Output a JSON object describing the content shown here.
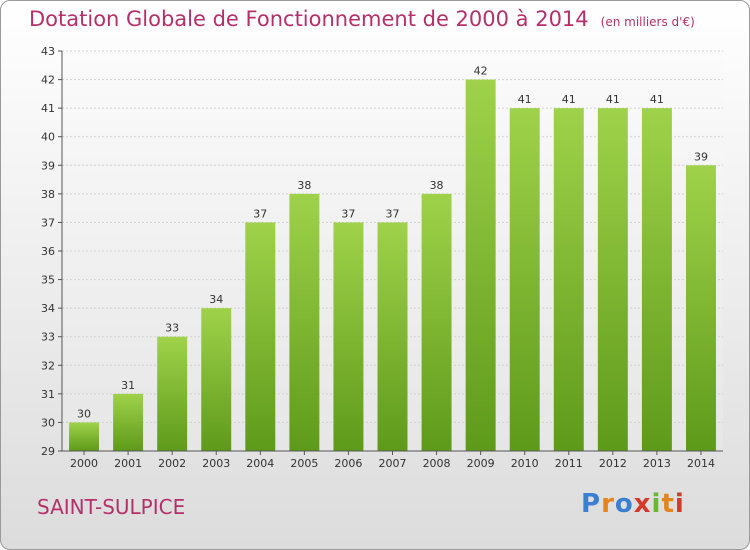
{
  "title": "Dotation Globale de Fonctionnement de 2000 à 2014",
  "subtitle": "(en milliers d'€)",
  "commune": "SAINT-SULPICE",
  "logo": {
    "letters": [
      "P",
      "r",
      "o",
      "x",
      "i",
      "t",
      "i"
    ],
    "colors": [
      "#3b7fd0",
      "#e2851e",
      "#3b7fd0",
      "#d33a2c",
      "#6bb72e",
      "#e2851e",
      "#d33a2c"
    ]
  },
  "chart_data": {
    "type": "bar",
    "categories": [
      "2000",
      "2001",
      "2002",
      "2003",
      "2004",
      "2005",
      "2006",
      "2007",
      "2008",
      "2009",
      "2010",
      "2011",
      "2012",
      "2013",
      "2014"
    ],
    "values": [
      30,
      31,
      33,
      34,
      37,
      38,
      37,
      37,
      38,
      42,
      41,
      41,
      41,
      41,
      39
    ],
    "ylim": [
      29,
      43
    ],
    "yticks": [
      29,
      30,
      31,
      32,
      33,
      34,
      35,
      36,
      37,
      38,
      39,
      40,
      41,
      42,
      43
    ],
    "grid": true,
    "bar_color": "#7fbf2f"
  }
}
